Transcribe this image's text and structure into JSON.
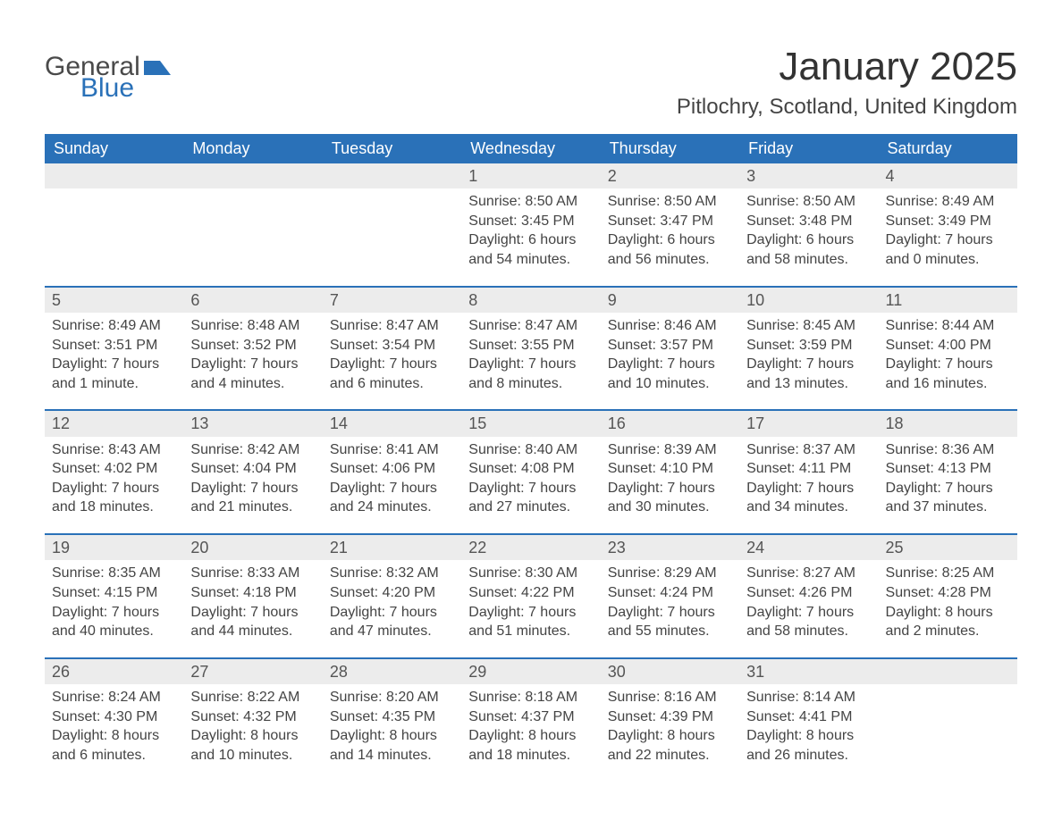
{
  "logo": {
    "text1": "General",
    "text2": "Blue",
    "color_general": "#4a4a4a",
    "color_blue": "#2a71b8"
  },
  "title": "January 2025",
  "location": "Pitlochry, Scotland, United Kingdom",
  "colors": {
    "header_bg": "#2a71b8",
    "header_text": "#ffffff",
    "daynum_bg": "#ececec",
    "body_text": "#444444",
    "rule": "#2a71b8",
    "page_bg": "#ffffff"
  },
  "fonts": {
    "title_size": 44,
    "location_size": 24,
    "weekday_size": 18,
    "body_size": 16
  },
  "weekdays": [
    "Sunday",
    "Monday",
    "Tuesday",
    "Wednesday",
    "Thursday",
    "Friday",
    "Saturday"
  ],
  "weeks": [
    [
      null,
      null,
      null,
      {
        "n": "1",
        "sunrise": "Sunrise: 8:50 AM",
        "sunset": "Sunset: 3:45 PM",
        "dl1": "Daylight: 6 hours",
        "dl2": "and 54 minutes."
      },
      {
        "n": "2",
        "sunrise": "Sunrise: 8:50 AM",
        "sunset": "Sunset: 3:47 PM",
        "dl1": "Daylight: 6 hours",
        "dl2": "and 56 minutes."
      },
      {
        "n": "3",
        "sunrise": "Sunrise: 8:50 AM",
        "sunset": "Sunset: 3:48 PM",
        "dl1": "Daylight: 6 hours",
        "dl2": "and 58 minutes."
      },
      {
        "n": "4",
        "sunrise": "Sunrise: 8:49 AM",
        "sunset": "Sunset: 3:49 PM",
        "dl1": "Daylight: 7 hours",
        "dl2": "and 0 minutes."
      }
    ],
    [
      {
        "n": "5",
        "sunrise": "Sunrise: 8:49 AM",
        "sunset": "Sunset: 3:51 PM",
        "dl1": "Daylight: 7 hours",
        "dl2": "and 1 minute."
      },
      {
        "n": "6",
        "sunrise": "Sunrise: 8:48 AM",
        "sunset": "Sunset: 3:52 PM",
        "dl1": "Daylight: 7 hours",
        "dl2": "and 4 minutes."
      },
      {
        "n": "7",
        "sunrise": "Sunrise: 8:47 AM",
        "sunset": "Sunset: 3:54 PM",
        "dl1": "Daylight: 7 hours",
        "dl2": "and 6 minutes."
      },
      {
        "n": "8",
        "sunrise": "Sunrise: 8:47 AM",
        "sunset": "Sunset: 3:55 PM",
        "dl1": "Daylight: 7 hours",
        "dl2": "and 8 minutes."
      },
      {
        "n": "9",
        "sunrise": "Sunrise: 8:46 AM",
        "sunset": "Sunset: 3:57 PM",
        "dl1": "Daylight: 7 hours",
        "dl2": "and 10 minutes."
      },
      {
        "n": "10",
        "sunrise": "Sunrise: 8:45 AM",
        "sunset": "Sunset: 3:59 PM",
        "dl1": "Daylight: 7 hours",
        "dl2": "and 13 minutes."
      },
      {
        "n": "11",
        "sunrise": "Sunrise: 8:44 AM",
        "sunset": "Sunset: 4:00 PM",
        "dl1": "Daylight: 7 hours",
        "dl2": "and 16 minutes."
      }
    ],
    [
      {
        "n": "12",
        "sunrise": "Sunrise: 8:43 AM",
        "sunset": "Sunset: 4:02 PM",
        "dl1": "Daylight: 7 hours",
        "dl2": "and 18 minutes."
      },
      {
        "n": "13",
        "sunrise": "Sunrise: 8:42 AM",
        "sunset": "Sunset: 4:04 PM",
        "dl1": "Daylight: 7 hours",
        "dl2": "and 21 minutes."
      },
      {
        "n": "14",
        "sunrise": "Sunrise: 8:41 AM",
        "sunset": "Sunset: 4:06 PM",
        "dl1": "Daylight: 7 hours",
        "dl2": "and 24 minutes."
      },
      {
        "n": "15",
        "sunrise": "Sunrise: 8:40 AM",
        "sunset": "Sunset: 4:08 PM",
        "dl1": "Daylight: 7 hours",
        "dl2": "and 27 minutes."
      },
      {
        "n": "16",
        "sunrise": "Sunrise: 8:39 AM",
        "sunset": "Sunset: 4:10 PM",
        "dl1": "Daylight: 7 hours",
        "dl2": "and 30 minutes."
      },
      {
        "n": "17",
        "sunrise": "Sunrise: 8:37 AM",
        "sunset": "Sunset: 4:11 PM",
        "dl1": "Daylight: 7 hours",
        "dl2": "and 34 minutes."
      },
      {
        "n": "18",
        "sunrise": "Sunrise: 8:36 AM",
        "sunset": "Sunset: 4:13 PM",
        "dl1": "Daylight: 7 hours",
        "dl2": "and 37 minutes."
      }
    ],
    [
      {
        "n": "19",
        "sunrise": "Sunrise: 8:35 AM",
        "sunset": "Sunset: 4:15 PM",
        "dl1": "Daylight: 7 hours",
        "dl2": "and 40 minutes."
      },
      {
        "n": "20",
        "sunrise": "Sunrise: 8:33 AM",
        "sunset": "Sunset: 4:18 PM",
        "dl1": "Daylight: 7 hours",
        "dl2": "and 44 minutes."
      },
      {
        "n": "21",
        "sunrise": "Sunrise: 8:32 AM",
        "sunset": "Sunset: 4:20 PM",
        "dl1": "Daylight: 7 hours",
        "dl2": "and 47 minutes."
      },
      {
        "n": "22",
        "sunrise": "Sunrise: 8:30 AM",
        "sunset": "Sunset: 4:22 PM",
        "dl1": "Daylight: 7 hours",
        "dl2": "and 51 minutes."
      },
      {
        "n": "23",
        "sunrise": "Sunrise: 8:29 AM",
        "sunset": "Sunset: 4:24 PM",
        "dl1": "Daylight: 7 hours",
        "dl2": "and 55 minutes."
      },
      {
        "n": "24",
        "sunrise": "Sunrise: 8:27 AM",
        "sunset": "Sunset: 4:26 PM",
        "dl1": "Daylight: 7 hours",
        "dl2": "and 58 minutes."
      },
      {
        "n": "25",
        "sunrise": "Sunrise: 8:25 AM",
        "sunset": "Sunset: 4:28 PM",
        "dl1": "Daylight: 8 hours",
        "dl2": "and 2 minutes."
      }
    ],
    [
      {
        "n": "26",
        "sunrise": "Sunrise: 8:24 AM",
        "sunset": "Sunset: 4:30 PM",
        "dl1": "Daylight: 8 hours",
        "dl2": "and 6 minutes."
      },
      {
        "n": "27",
        "sunrise": "Sunrise: 8:22 AM",
        "sunset": "Sunset: 4:32 PM",
        "dl1": "Daylight: 8 hours",
        "dl2": "and 10 minutes."
      },
      {
        "n": "28",
        "sunrise": "Sunrise: 8:20 AM",
        "sunset": "Sunset: 4:35 PM",
        "dl1": "Daylight: 8 hours",
        "dl2": "and 14 minutes."
      },
      {
        "n": "29",
        "sunrise": "Sunrise: 8:18 AM",
        "sunset": "Sunset: 4:37 PM",
        "dl1": "Daylight: 8 hours",
        "dl2": "and 18 minutes."
      },
      {
        "n": "30",
        "sunrise": "Sunrise: 8:16 AM",
        "sunset": "Sunset: 4:39 PM",
        "dl1": "Daylight: 8 hours",
        "dl2": "and 22 minutes."
      },
      {
        "n": "31",
        "sunrise": "Sunrise: 8:14 AM",
        "sunset": "Sunset: 4:41 PM",
        "dl1": "Daylight: 8 hours",
        "dl2": "and 26 minutes."
      },
      null
    ]
  ]
}
